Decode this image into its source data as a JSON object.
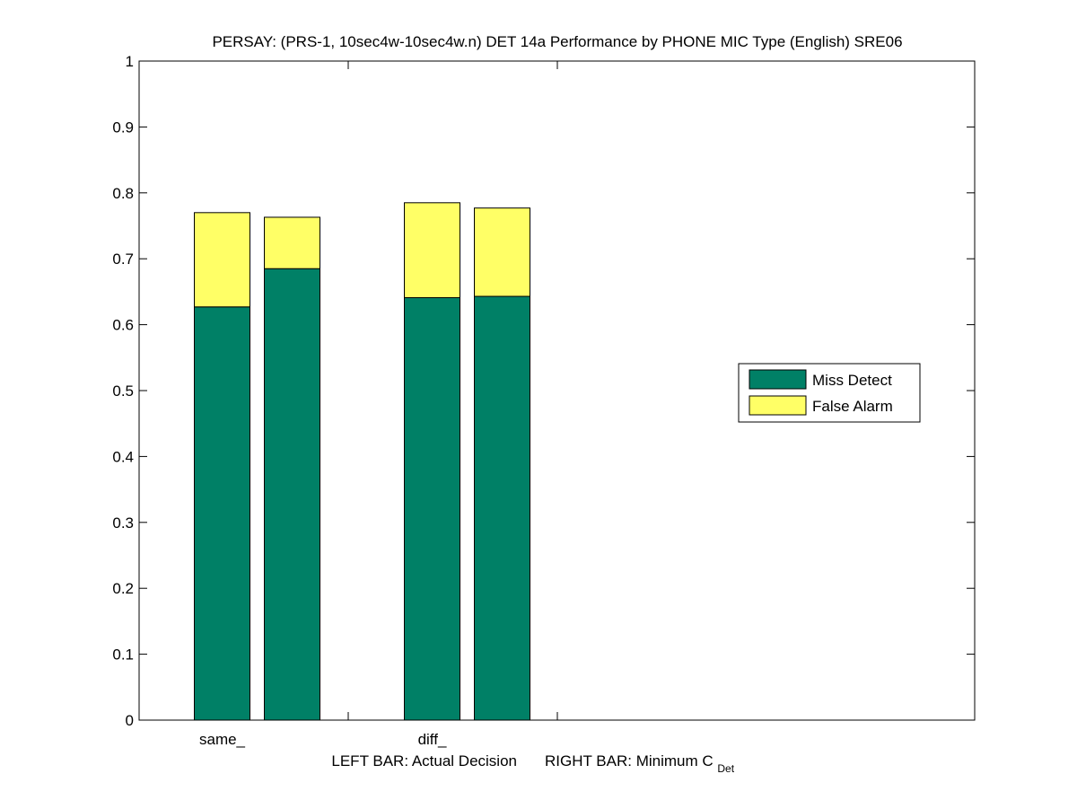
{
  "chart_data": {
    "type": "bar",
    "stacked": true,
    "title": "PERSAY: (PRS-1, 10sec4w-10sec4w.n) DET 14a Performance by PHONE MIC Type (English) SRE06",
    "xlabel_left": "LEFT BAR: Actual Decision",
    "xlabel_right_main": "RIGHT BAR: Minimum C",
    "xlabel_right_sub": "Det",
    "ylabel": "",
    "ylim": [
      0,
      1
    ],
    "yticks": [
      "0",
      "0.1",
      "0.2",
      "0.3",
      "0.4",
      "0.5",
      "0.6",
      "0.7",
      "0.8",
      "0.9",
      "1"
    ],
    "categories": [
      "same_",
      "diff_"
    ],
    "bar_roles": [
      "Actual Decision",
      "Minimum C_Det"
    ],
    "series": [
      {
        "name": "Miss Detect",
        "color": "#008066",
        "values": [
          [
            0.627,
            0.685
          ],
          [
            0.641,
            0.643
          ]
        ]
      },
      {
        "name": "False Alarm",
        "color": "#ffff66",
        "values": [
          [
            0.143,
            0.078
          ],
          [
            0.144,
            0.134
          ]
        ]
      }
    ],
    "grid": false,
    "legend_position": "right"
  }
}
